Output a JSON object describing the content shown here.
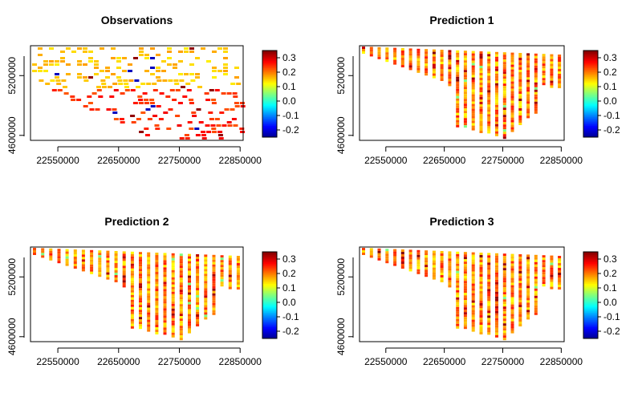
{
  "chart_data": [
    {
      "type": "heatmap",
      "title": "Observations",
      "xlabel": "",
      "ylabel": "",
      "x_ticks": [
        "22550000",
        "22650000",
        "22750000",
        "22850000"
      ],
      "y_ticks": [
        "4600000",
        "5200000"
      ],
      "xlim": [
        22505000,
        22855000
      ],
      "ylim": [
        4550000,
        5500000
      ],
      "colorbar": {
        "min": -0.25,
        "max": 0.35,
        "ticks": [
          "0.3",
          "0.2",
          "0.1",
          "0.0",
          "-0.1",
          "-0.2"
        ]
      },
      "pattern": "scattered",
      "notes_value_range": [
        -0.25,
        0.35
      ]
    },
    {
      "type": "heatmap",
      "title": "Prediction 1",
      "xlabel": "",
      "ylabel": "",
      "x_ticks": [
        "22550000",
        "22650000",
        "22750000",
        "22850000"
      ],
      "y_ticks": [
        "4600000",
        "5200000"
      ],
      "xlim": [
        22505000,
        22855000
      ],
      "ylim": [
        4550000,
        5500000
      ],
      "colorbar": {
        "min": -0.25,
        "max": 0.35,
        "ticks": [
          "0.3",
          "0.2",
          "0.1",
          "0.0",
          "-0.1",
          "-0.2"
        ]
      },
      "pattern": "columns"
    },
    {
      "type": "heatmap",
      "title": "Prediction 2",
      "xlabel": "",
      "ylabel": "",
      "x_ticks": [
        "22550000",
        "22650000",
        "22750000",
        "22850000"
      ],
      "y_ticks": [
        "4600000",
        "5200000"
      ],
      "xlim": [
        22505000,
        22855000
      ],
      "ylim": [
        4550000,
        5500000
      ],
      "colorbar": {
        "min": -0.25,
        "max": 0.35,
        "ticks": [
          "0.3",
          "0.2",
          "0.1",
          "0.0",
          "-0.1",
          "-0.2"
        ]
      },
      "pattern": "columns"
    },
    {
      "type": "heatmap",
      "title": "Prediction 3",
      "xlabel": "",
      "ylabel": "",
      "x_ticks": [
        "22550000",
        "22650000",
        "22750000",
        "22850000"
      ],
      "y_ticks": [
        "4600000",
        "5200000"
      ],
      "xlim": [
        22505000,
        22855000
      ],
      "ylim": [
        4550000,
        5500000
      ],
      "colorbar": {
        "min": -0.25,
        "max": 0.35,
        "ticks": [
          "0.3",
          "0.2",
          "0.1",
          "0.0",
          "-0.1",
          "-0.2"
        ]
      },
      "pattern": "columns"
    }
  ]
}
